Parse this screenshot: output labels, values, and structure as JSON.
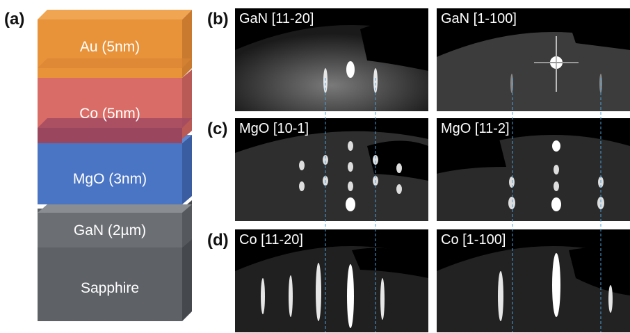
{
  "panels": {
    "a": "(a)",
    "b": "(b)",
    "c": "(c)",
    "d": "(d)"
  },
  "layers": [
    {
      "label": "Au (5nm)",
      "color": "#e8923a"
    },
    {
      "label": "Co (5nm)",
      "color": "#d96c66"
    },
    {
      "label": "MgO (3nm)",
      "color": "#4a74c4"
    },
    {
      "label": "GaN (2µm)",
      "color": "#6b6e72"
    },
    {
      "label": "Sapphire",
      "color": "#5e6166"
    }
  ],
  "rheed": {
    "b_left": "GaN [11-20]",
    "b_right": "GaN [1-100]",
    "c_left": "MgO [10-1]",
    "c_right": "MgO [11-2]",
    "d_left": "Co [11-20]",
    "d_right": "Co [1-100]"
  },
  "guide_color": "#4aa0e0"
}
